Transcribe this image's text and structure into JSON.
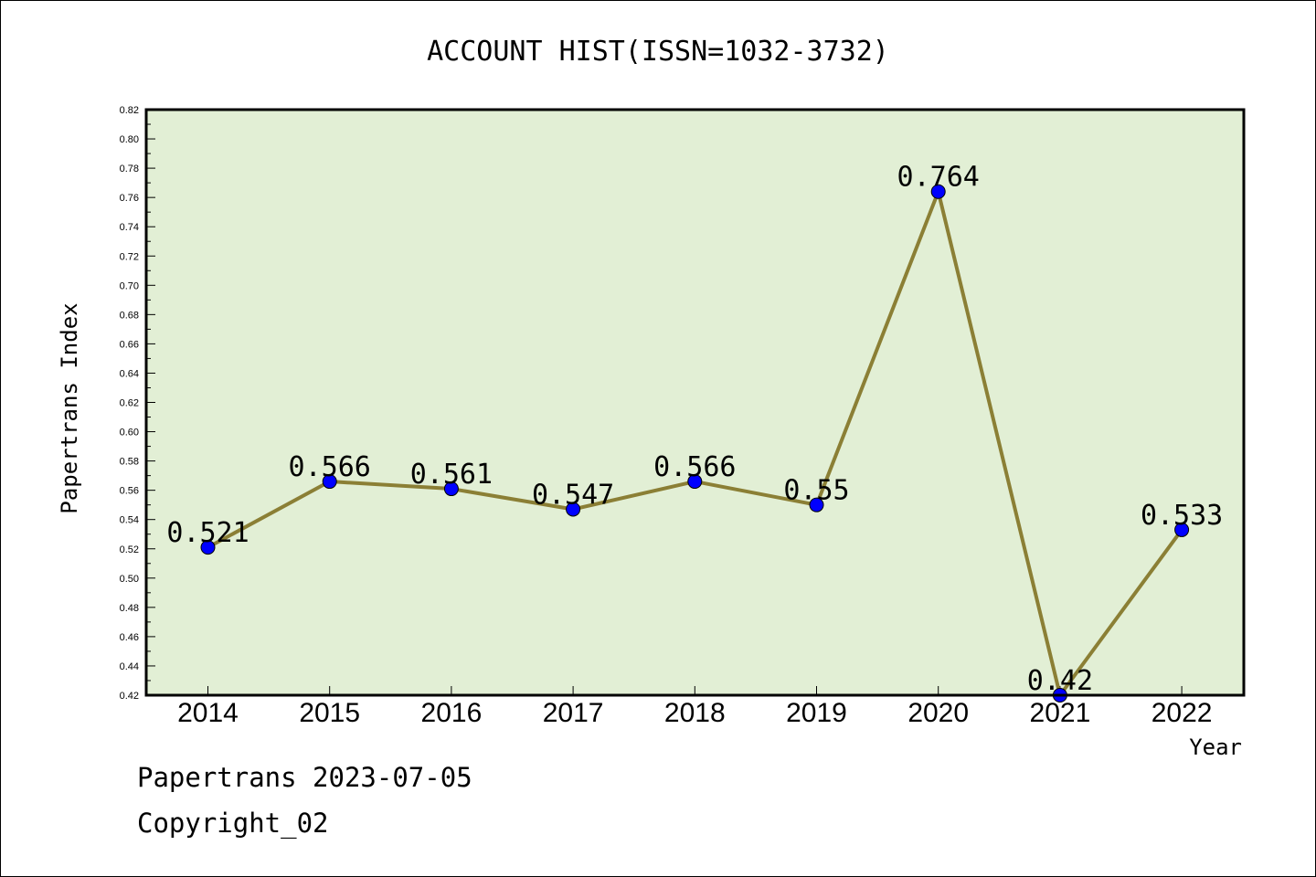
{
  "chart_data": {
    "type": "line",
    "title": "ACCOUNT HIST(ISSN=1032-3732)",
    "xlabel": "Year",
    "ylabel": "Papertrans Index",
    "categories": [
      "2014",
      "2015",
      "2016",
      "2017",
      "2018",
      "2019",
      "2020",
      "2021",
      "2022"
    ],
    "values": [
      0.521,
      0.566,
      0.561,
      0.547,
      0.566,
      0.55,
      0.764,
      0.42,
      0.533
    ],
    "data_labels": [
      "0.521",
      "0.566",
      "0.561",
      "0.547",
      "0.566",
      "0.55",
      "0.764",
      "0.42",
      "0.533"
    ],
    "ylim": [
      0.42,
      0.82
    ],
    "yticks": [
      "0.42",
      "0.44",
      "0.46",
      "0.48",
      "0.50",
      "0.52",
      "0.54",
      "0.56",
      "0.58",
      "0.60",
      "0.62",
      "0.64",
      "0.66",
      "0.68",
      "0.70",
      "0.72",
      "0.74",
      "0.76",
      "0.78",
      "0.80",
      "0.82"
    ],
    "grid": false,
    "colors": {
      "plot_background": "#e2efd5",
      "line": "#8b7f35",
      "marker": "#0000ff"
    }
  },
  "footer": {
    "line1": "Papertrans 2023-07-05",
    "line2": "Copyright_02"
  }
}
